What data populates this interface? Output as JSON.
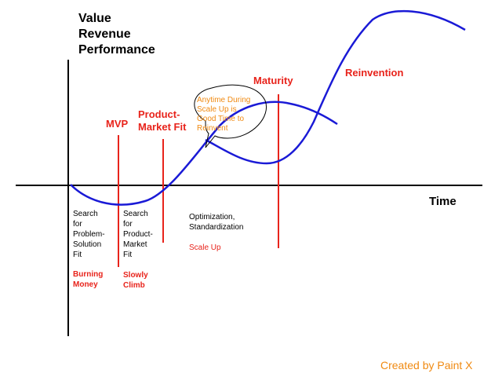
{
  "axes": {
    "y_title_lines": [
      "Value",
      "Revenue",
      "Performance"
    ],
    "x_title": "Time"
  },
  "milestones": {
    "mvp": "MVP",
    "product_market_fit": [
      "Product-",
      "Market Fit"
    ],
    "maturity": "Maturity",
    "reinvention": "Reinvention"
  },
  "callout": {
    "lines": [
      "Anytime During",
      "Scale Up is",
      "Good Time to",
      "Reinvent"
    ]
  },
  "phases": {
    "phase1": {
      "description_lines": [
        "Search",
        "for",
        "Problem-",
        "Solution",
        "Fit"
      ],
      "status_lines": [
        "Burning",
        "Money"
      ]
    },
    "phase2": {
      "description_lines": [
        "Search",
        "for",
        "Product-",
        "Market",
        "Fit"
      ],
      "status_lines": [
        "Slowly",
        "Climb"
      ]
    },
    "phase3": {
      "description_lines": [
        "Optimization,",
        "Standardization"
      ],
      "status_lines": [
        "Scale Up"
      ]
    }
  },
  "credit": "Created by Paint X",
  "colors": {
    "curve": "#1a1ad6",
    "milestone_line": "#e8231b",
    "milestone_text": "#e8231b",
    "callout_text": "#f08a12",
    "axis": "#000000"
  }
}
